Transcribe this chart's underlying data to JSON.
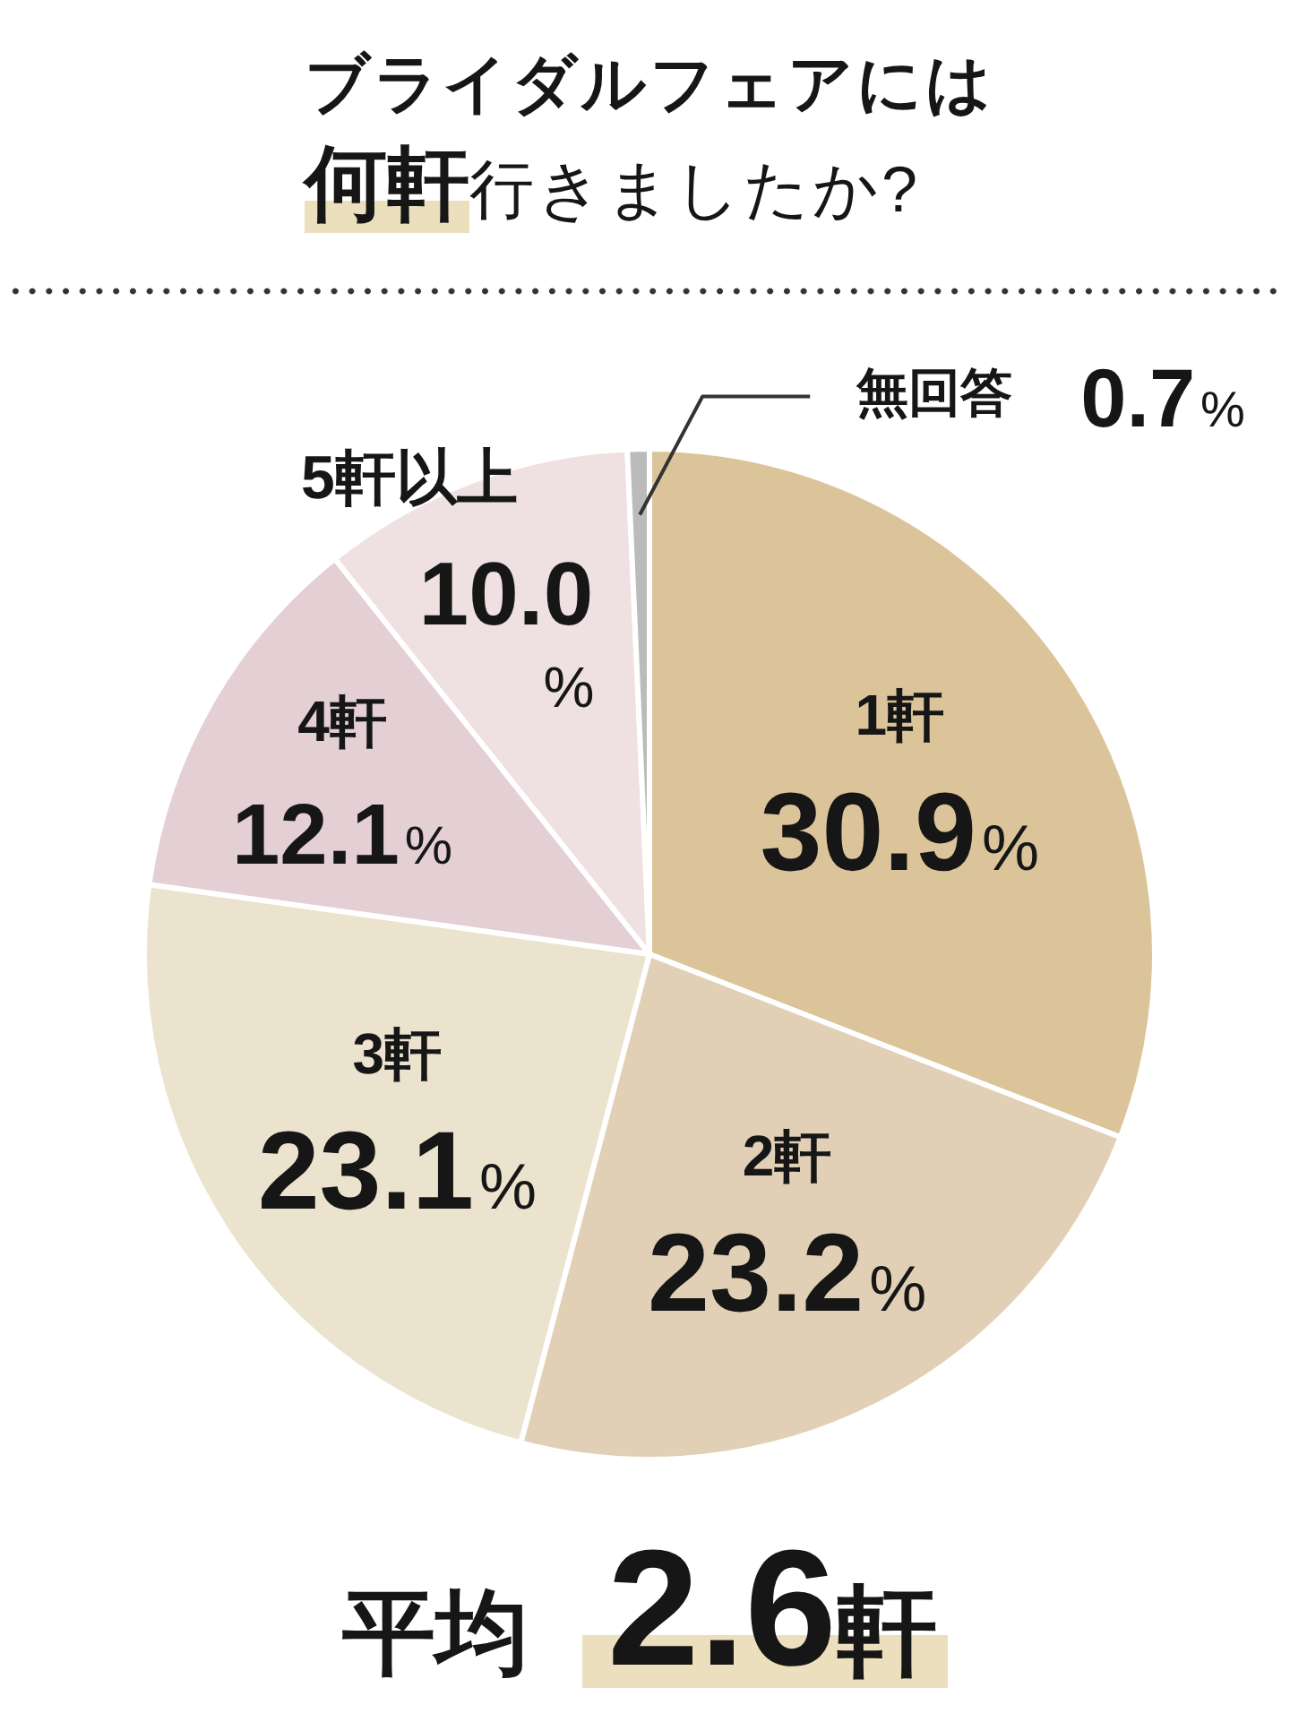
{
  "chart_data": {
    "type": "pie",
    "title": "ブライダルフェアには何軒行きましたか?",
    "categories": [
      "1軒",
      "2軒",
      "3軒",
      "4軒",
      "5軒以上",
      "無回答"
    ],
    "values": [
      30.9,
      23.2,
      23.1,
      12.1,
      10.0,
      0.7
    ],
    "value_labels": [
      "30.9%",
      "23.2%",
      "23.1%",
      "12.1%",
      "10.0%",
      "0.7%"
    ],
    "colors": [
      "#dcc49a",
      "#e1d0b6",
      "#ece3cf",
      "#e3cfd4",
      "#efe0e2",
      "#bbbbbb"
    ],
    "annotations": [
      "平均 2.6軒"
    ]
  }
}
